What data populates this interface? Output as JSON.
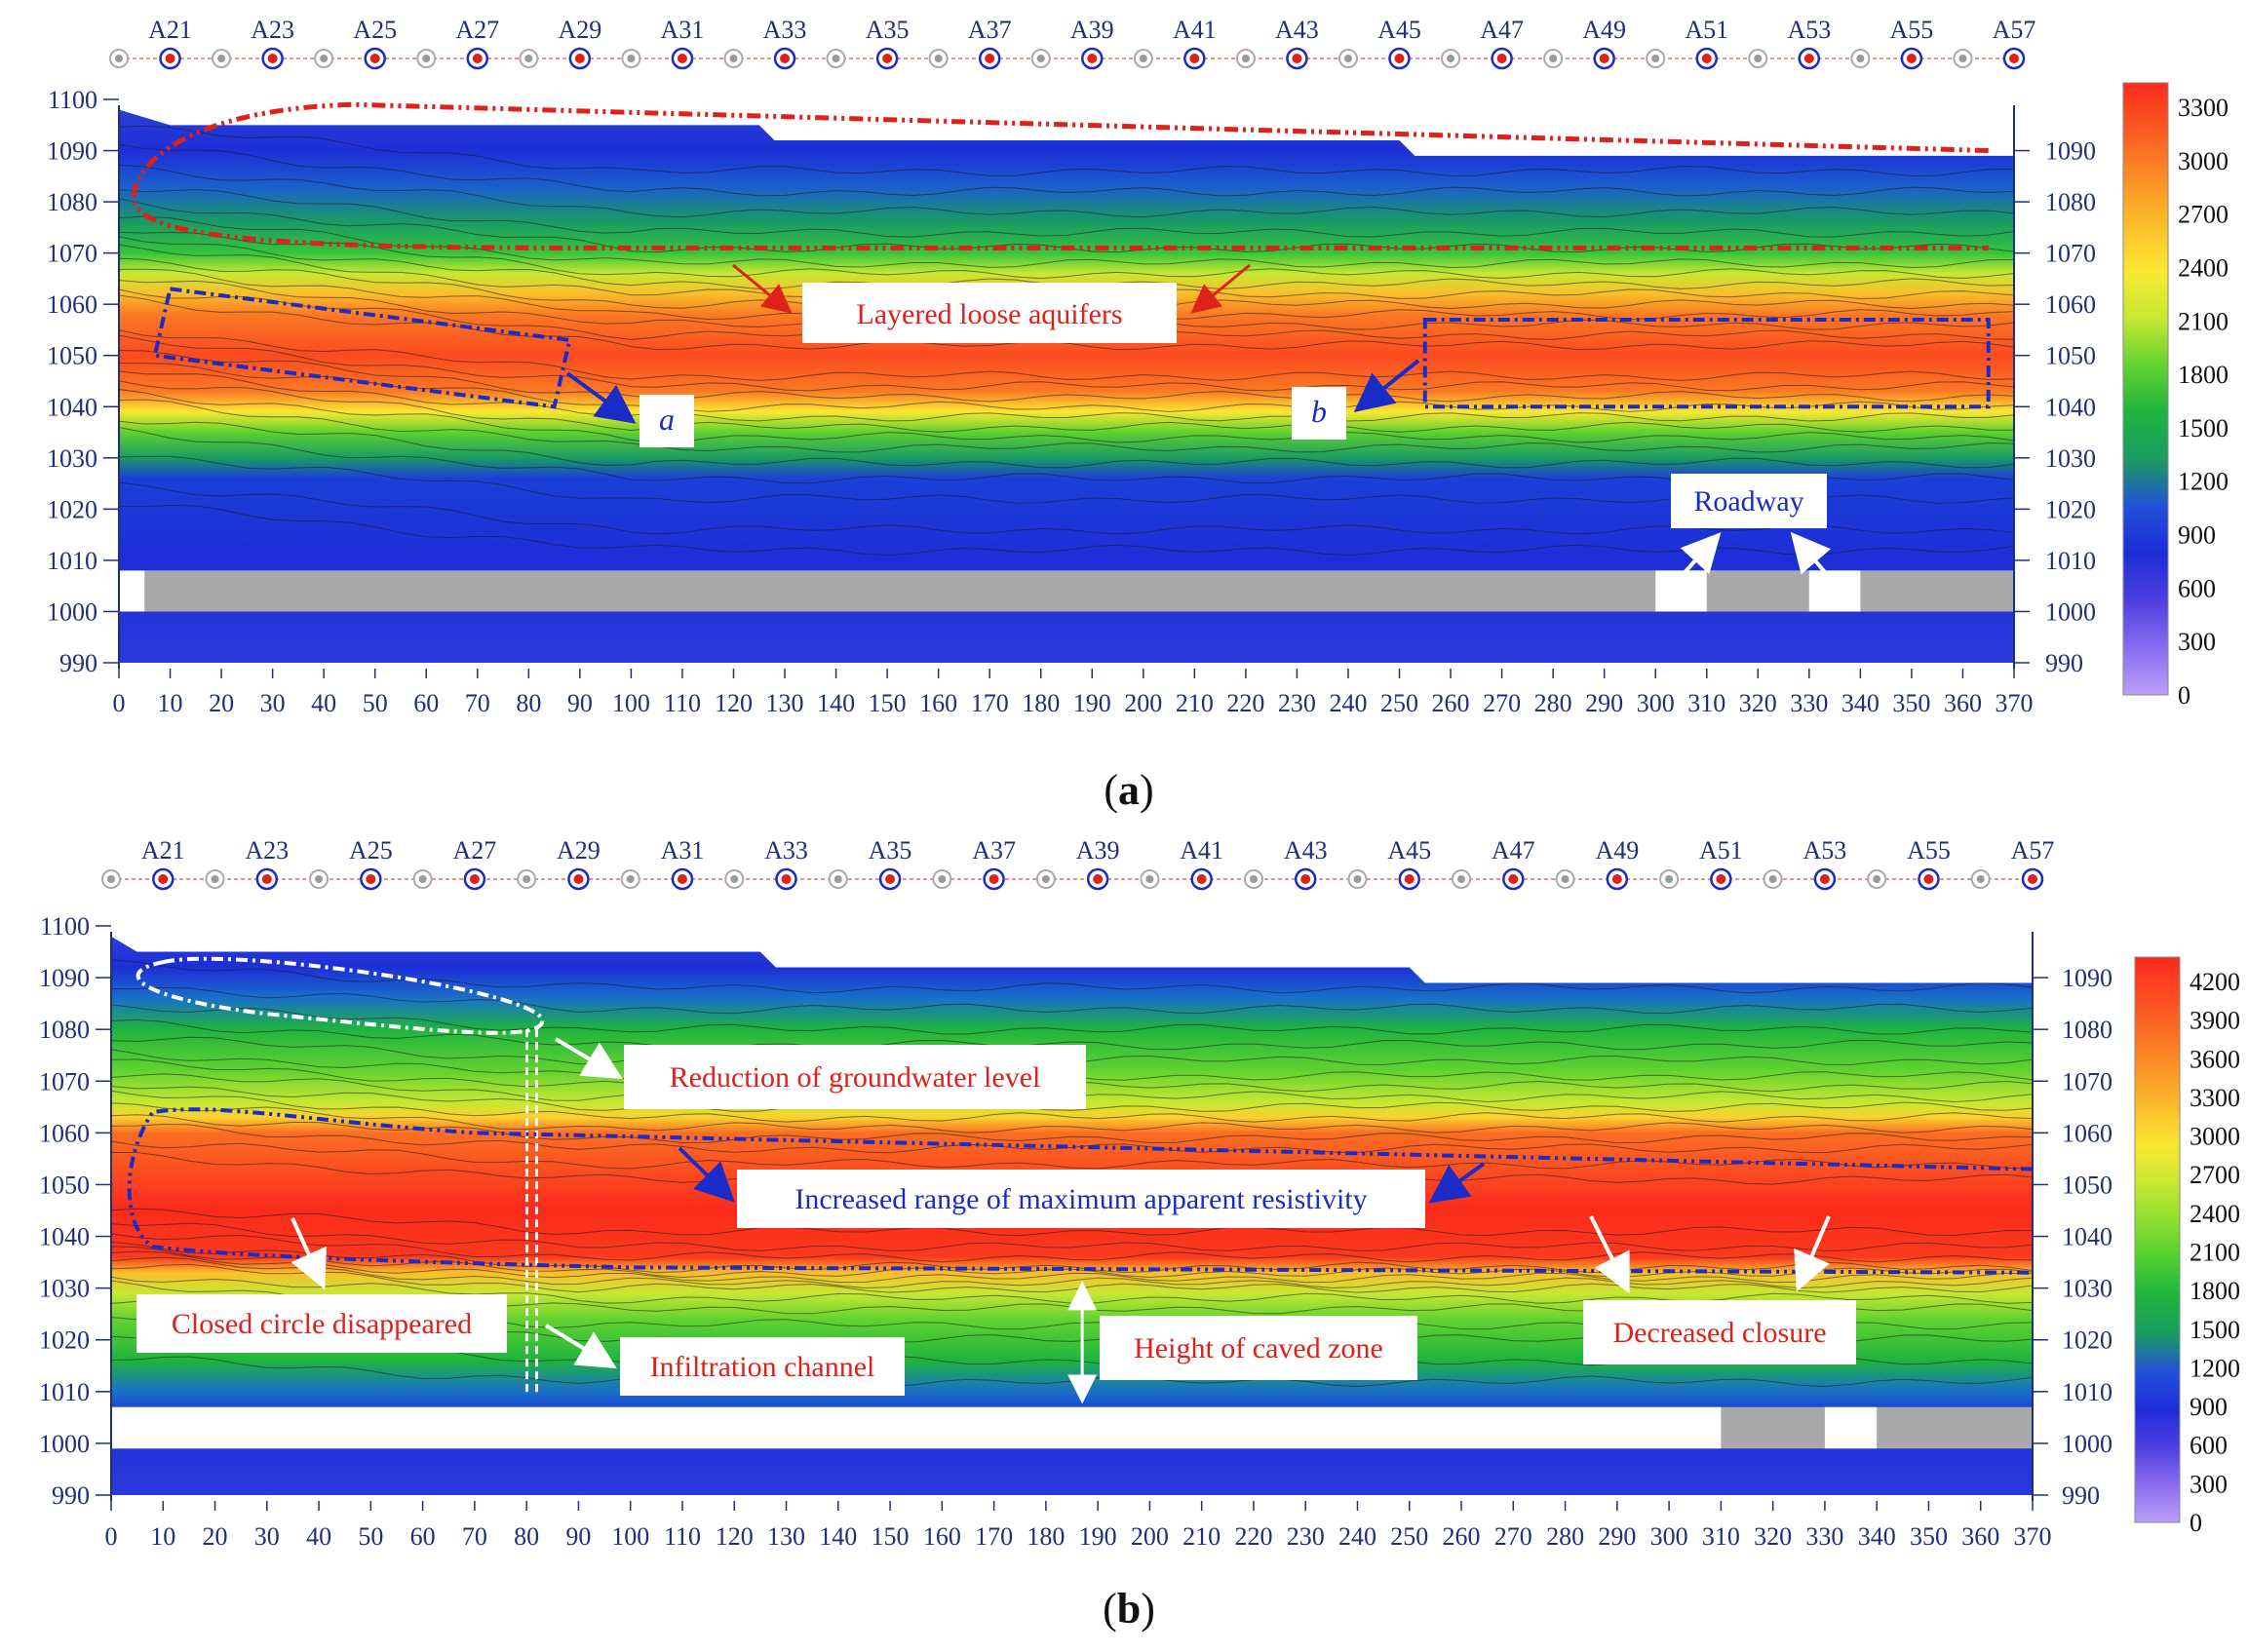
{
  "panels": [
    {
      "id": "a",
      "caption_letter": "a",
      "colorbar_ticks": [
        "3300",
        "3000",
        "2700",
        "2400",
        "2100",
        "1800",
        "1500",
        "1200",
        "900",
        "600",
        "300",
        "0"
      ],
      "colorbar_colors": [
        "#fb2a1c",
        "#fb5a22",
        "#fb8d26",
        "#fbbd2b",
        "#fbe832",
        "#c7e832",
        "#62d330",
        "#1fb43e",
        "#1a9b62",
        "#2250d8",
        "#1d2dd8",
        "#4d3fe0",
        "#8a6cf0",
        "#bb9ff8"
      ],
      "annotations": {
        "aquifers": "Layered loose aquifers",
        "a": "a",
        "b": "b",
        "roadway": "Roadway"
      }
    },
    {
      "id": "b",
      "caption_letter": "b",
      "colorbar_ticks": [
        "4200",
        "3900",
        "3600",
        "3300",
        "3000",
        "2700",
        "2400",
        "2100",
        "1800",
        "1500",
        "1200",
        "900",
        "600",
        "300",
        "0"
      ],
      "colorbar_colors": [
        "#fb2a1c",
        "#fb4a20",
        "#fb6f23",
        "#fb9527",
        "#fbbd2b",
        "#fbe832",
        "#c7e832",
        "#8fde31",
        "#4ed02f",
        "#1fb43e",
        "#1a9b62",
        "#2250d8",
        "#1d2dd8",
        "#4d3fe0",
        "#8a6cf0",
        "#bb9ff8"
      ],
      "annotations": {
        "groundwater": "Reduction of groundwater level",
        "resistivity": "Increased range of maximum apparent resistivity",
        "closed_circle": "Closed circle disappeared",
        "infiltration": "Infiltration channel",
        "caved_zone": "Height of caved zone",
        "closure": "Decreased closure"
      }
    }
  ],
  "chart_data": [
    {
      "type": "heatmap",
      "panel": "a",
      "title": "",
      "x": {
        "range": [
          0,
          370
        ],
        "ticks": [
          0,
          10,
          20,
          30,
          40,
          50,
          60,
          70,
          80,
          90,
          100,
          110,
          120,
          130,
          140,
          150,
          160,
          170,
          180,
          190,
          200,
          210,
          220,
          230,
          240,
          250,
          260,
          270,
          280,
          290,
          300,
          310,
          320,
          330,
          340,
          350,
          360,
          370
        ]
      },
      "y": {
        "range": [
          990,
          1100
        ],
        "left_ticks": [
          990,
          1000,
          1010,
          1020,
          1030,
          1040,
          1050,
          1060,
          1070,
          1080,
          1090,
          1100
        ],
        "right_ticks": [
          990,
          1000,
          1010,
          1020,
          1030,
          1040,
          1050,
          1060,
          1070,
          1080,
          1090
        ]
      },
      "electrodes": [
        "A21",
        "A23",
        "A25",
        "A27",
        "A29",
        "A31",
        "A33",
        "A35",
        "A37",
        "A39",
        "A41",
        "A43",
        "A45",
        "A47",
        "A49",
        "A51",
        "A53",
        "A55",
        "A57"
      ],
      "colorbar_range": [
        0,
        3300
      ],
      "surface_profile": [
        [
          0,
          1098
        ],
        [
          10,
          1095
        ],
        [
          125,
          1095
        ],
        [
          128,
          1092
        ],
        [
          250,
          1092
        ],
        [
          253,
          1089
        ],
        [
          370,
          1089
        ]
      ],
      "high_resistivity_band": {
        "upper_elev": 1068,
        "lower_elev": 1035,
        "peak_elev": 1050,
        "peak_value": 3300
      },
      "roadway_layer_elev": [
        1000,
        1008
      ],
      "roadway_openings_x": [
        [
          300,
          310
        ],
        [
          330,
          340
        ]
      ],
      "regions": [
        {
          "label": "a",
          "x": [
            7,
            88
          ],
          "elev": [
            1040,
            1063
          ]
        },
        {
          "label": "b",
          "x": [
            255,
            365
          ],
          "elev": [
            1040,
            1057
          ]
        }
      ]
    },
    {
      "type": "heatmap",
      "panel": "b",
      "title": "",
      "x": {
        "range": [
          0,
          370
        ],
        "ticks": [
          0,
          10,
          20,
          30,
          40,
          50,
          60,
          70,
          80,
          90,
          100,
          110,
          120,
          130,
          140,
          150,
          160,
          170,
          180,
          190,
          200,
          210,
          220,
          230,
          240,
          250,
          260,
          270,
          280,
          290,
          300,
          310,
          320,
          330,
          340,
          350,
          360,
          370
        ]
      },
      "y": {
        "range": [
          990,
          1100
        ],
        "left_ticks": [
          990,
          1000,
          1010,
          1020,
          1030,
          1040,
          1050,
          1060,
          1070,
          1080,
          1090,
          1100
        ],
        "right_ticks": [
          990,
          1000,
          1010,
          1020,
          1030,
          1040,
          1050,
          1060,
          1070,
          1080,
          1090
        ]
      },
      "electrodes": [
        "A21",
        "A23",
        "A25",
        "A27",
        "A29",
        "A31",
        "A33",
        "A35",
        "A37",
        "A39",
        "A41",
        "A43",
        "A45",
        "A47",
        "A49",
        "A51",
        "A53",
        "A55",
        "A57"
      ],
      "colorbar_range": [
        0,
        4200
      ],
      "surface_profile": [
        [
          0,
          1098
        ],
        [
          5,
          1095
        ],
        [
          125,
          1095
        ],
        [
          128,
          1092
        ],
        [
          250,
          1092
        ],
        [
          253,
          1089
        ],
        [
          370,
          1089
        ]
      ],
      "high_resistivity_band": {
        "upper_elev": 1062,
        "lower_elev": 1032,
        "peak_elev": 1045,
        "peak_value": 4200
      },
      "roadway_layer_elev": [
        999,
        1007
      ],
      "goaf_x": [
        [
          0,
          310
        ],
        [
          330,
          340
        ]
      ],
      "infiltration_channel_x": 81,
      "caved_zone_elev": [
        1008,
        1031
      ]
    }
  ]
}
